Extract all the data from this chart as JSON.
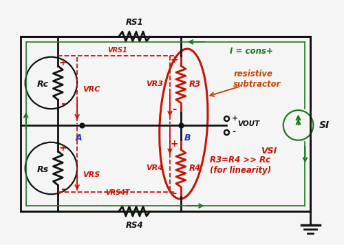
{
  "bg_color": "#f5f5f5",
  "black": "#111111",
  "red": "#cc1100",
  "green": "#1a7a1a",
  "blue": "#2233bb",
  "orange": "#cc4400",
  "fig_w": 5.0,
  "fig_h": 3.56,
  "RS1_label": "RS1",
  "RS4_label": "RS4",
  "RC_label": "Rc",
  "RS_label": "Rs",
  "R3_label": "R3",
  "R4_label": "R4",
  "SI_label": "SI",
  "A_label": "A",
  "B_label": "B",
  "VRC_label": "VRC",
  "VRS_label": "VRS",
  "VR3_label": "VR3",
  "VR4_label": "VR4",
  "VRS1_label": "VRS1",
  "VRS4_label": "VRS4T",
  "VOUT_label": "VOUT",
  "VSI_label": "VSI",
  "Iconst_label": "I = cons+",
  "subtitle": "resistive\nsubtractor",
  "condition": "R3=R4 >> Rc\n(for linearity)"
}
